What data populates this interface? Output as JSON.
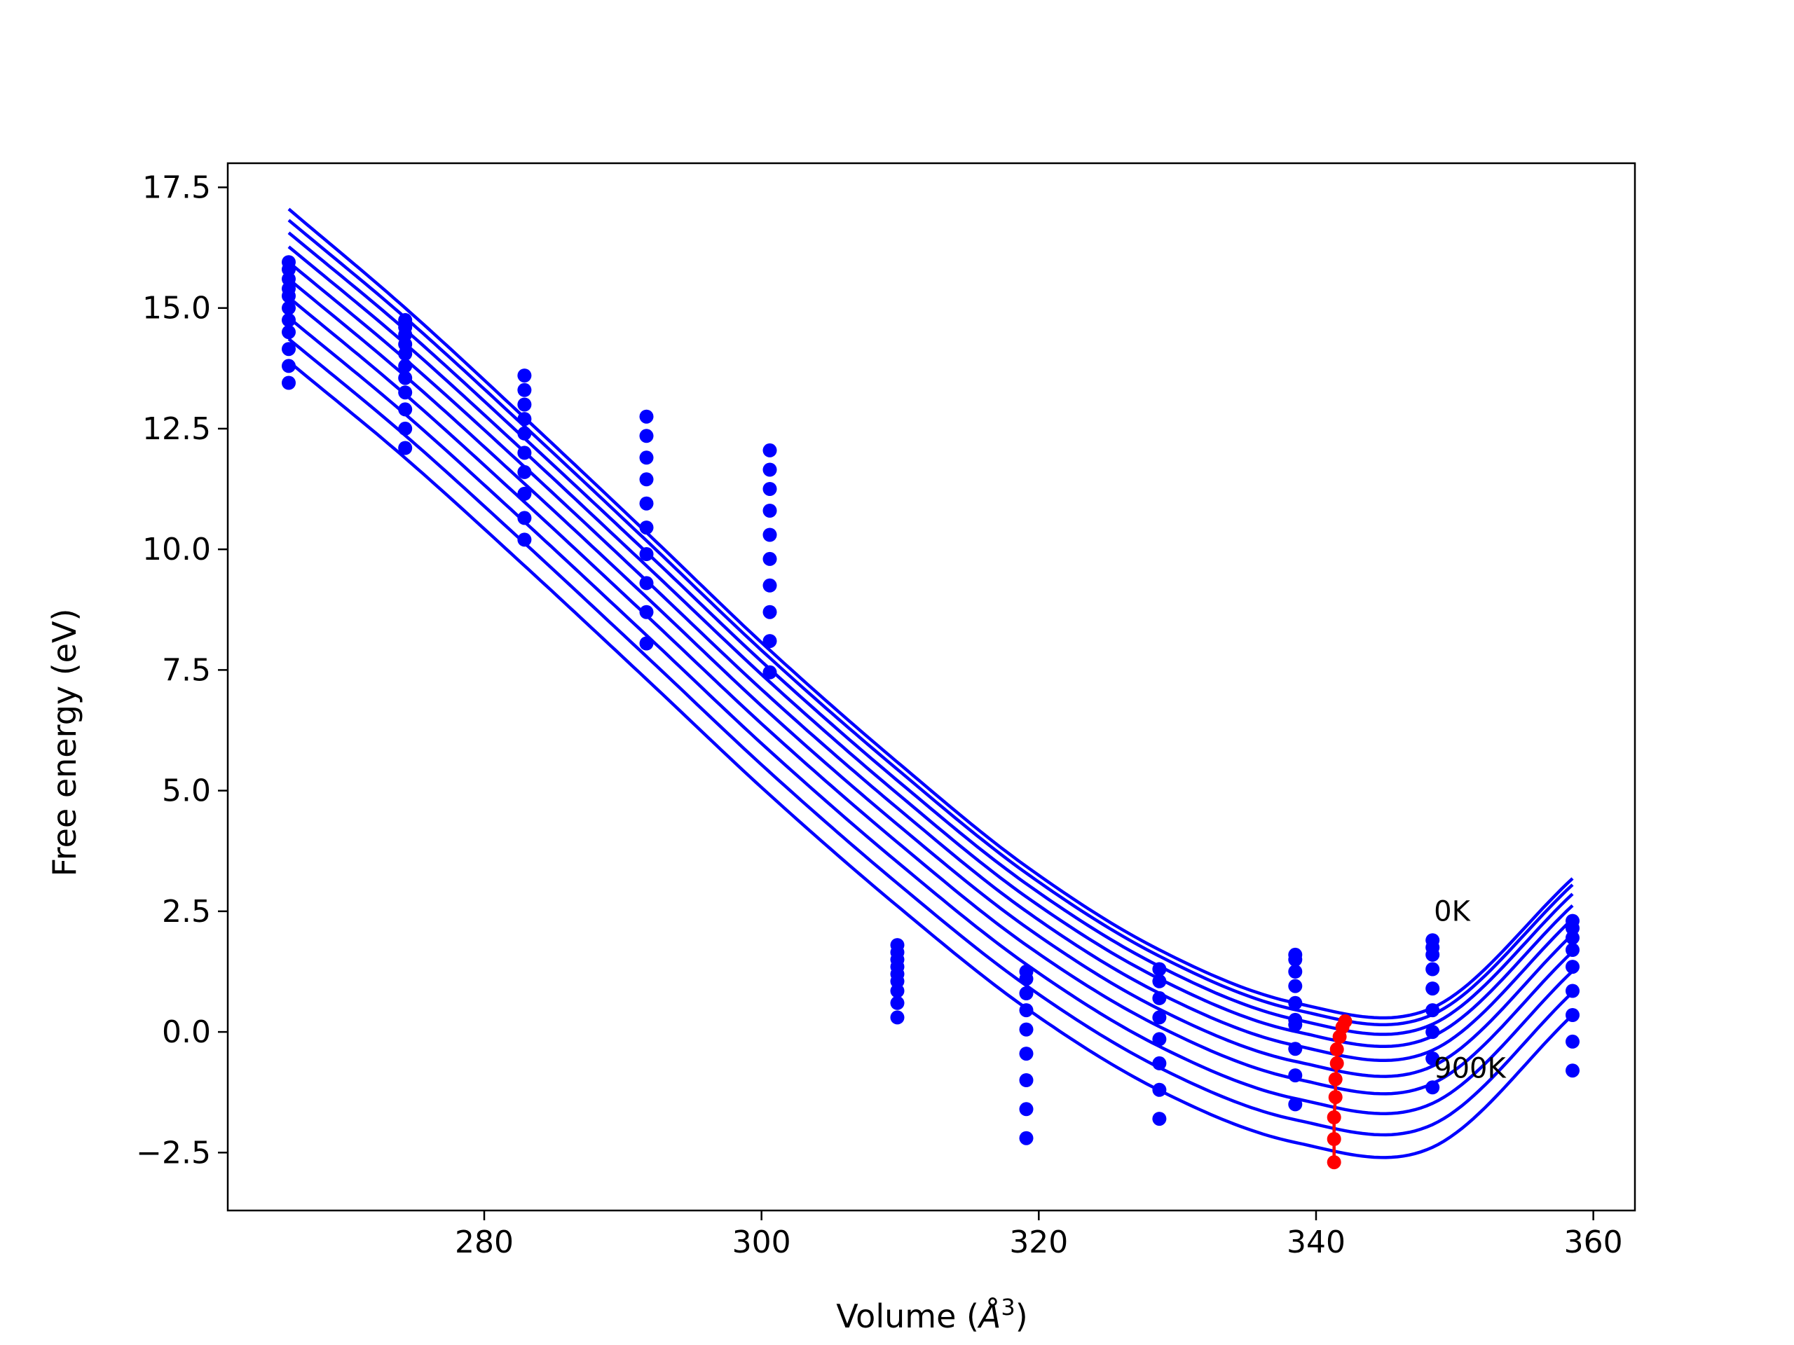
{
  "chart_data": {
    "type": "scatter",
    "title": "",
    "xlabel": "Volume (",
    "xlabel_symbol": "Å",
    "xlabel_exp": "3",
    "xlabel_close": ")",
    "ylabel": "Free energy (eV)",
    "xlim": [
      261.5,
      363
    ],
    "ylim": [
      -3.7,
      18.0
    ],
    "xticks": [
      280,
      300,
      320,
      340,
      360
    ],
    "xtick_labels": [
      "280",
      "300",
      "320",
      "340",
      "360"
    ],
    "yticks": [
      -2.5,
      0.0,
      2.5,
      5.0,
      7.5,
      10.0,
      12.5,
      15.0,
      17.5
    ],
    "ytick_labels": [
      "−2.5",
      "0.0",
      "2.5",
      "5.0",
      "7.5",
      "10.0",
      "12.5",
      "15.0",
      "17.5"
    ],
    "grid": false,
    "volumes": [
      265.9,
      274.3,
      282.9,
      291.7,
      300.6,
      309.8,
      319.1,
      328.7,
      338.5,
      348.4,
      358.5
    ],
    "curve_x_range": [
      265.9,
      358.5
    ],
    "series": [
      {
        "values": [
          17.05,
          15.0,
          12.73,
          10.35,
          7.91,
          5.59,
          3.43,
          1.7,
          0.6,
          0.5,
          3.18
        ]
      },
      {
        "values": [
          16.82,
          14.8,
          12.55,
          10.18,
          7.75,
          5.44,
          3.29,
          1.57,
          0.46,
          0.36,
          3.05
        ]
      },
      {
        "values": [
          16.56,
          14.55,
          12.3,
          9.94,
          7.52,
          5.21,
          3.07,
          1.36,
          0.26,
          0.16,
          2.86
        ]
      },
      {
        "values": [
          16.27,
          14.26,
          12.02,
          9.66,
          7.25,
          4.94,
          2.8,
          1.1,
          0.01,
          -0.09,
          2.62
        ]
      },
      {
        "values": [
          15.95,
          13.94,
          11.71,
          9.35,
          6.94,
          4.64,
          2.5,
          0.8,
          -0.28,
          -0.38,
          2.34
        ]
      },
      {
        "values": [
          15.6,
          13.59,
          11.36,
          9.01,
          6.6,
          4.3,
          2.17,
          0.47,
          -0.61,
          -0.71,
          2.02
        ]
      },
      {
        "values": [
          15.22,
          13.21,
          10.98,
          8.63,
          6.23,
          3.93,
          1.8,
          0.11,
          -0.97,
          -1.07,
          1.66
        ]
      },
      {
        "values": [
          14.8,
          12.8,
          10.57,
          8.22,
          5.82,
          3.52,
          1.4,
          -0.3,
          -1.38,
          -1.48,
          1.26
        ]
      },
      {
        "values": [
          14.36,
          12.36,
          10.13,
          7.78,
          5.38,
          3.08,
          0.96,
          -0.74,
          -1.82,
          -1.92,
          0.82
        ]
      },
      {
        "values": [
          13.89,
          11.89,
          9.66,
          7.31,
          4.91,
          2.61,
          0.49,
          -1.21,
          -2.29,
          -2.39,
          0.35
        ]
      }
    ],
    "curve_minima": [
      0.22,
      0.1,
      -0.1,
      -0.36,
      -0.65,
      -0.98,
      -1.35,
      -1.77,
      -2.22,
      -2.7
    ],
    "points": [
      {
        "x": 265.9,
        "y": [
          15.95,
          15.8,
          15.6,
          15.4,
          15.25,
          15.0,
          14.75,
          14.5,
          14.15,
          13.8,
          13.45
        ]
      },
      {
        "x": 274.3,
        "y": [
          14.75,
          14.6,
          14.45,
          14.25,
          14.05,
          13.8,
          13.55,
          13.25,
          12.9,
          12.5,
          12.1
        ]
      },
      {
        "x": 282.9,
        "y": [
          13.6,
          13.3,
          13.0,
          12.7,
          12.4,
          12.0,
          11.6,
          11.15,
          10.65,
          10.2
        ]
      },
      {
        "x": 291.7,
        "y": [
          12.75,
          12.35,
          11.9,
          11.45,
          10.95,
          10.45,
          9.9,
          9.3,
          8.7,
          8.05
        ]
      },
      {
        "x": 300.6,
        "y": [
          12.05,
          11.65,
          11.25,
          10.8,
          10.3,
          9.8,
          9.25,
          8.7,
          8.1,
          7.45
        ]
      },
      {
        "x": 309.8,
        "y": [
          1.8,
          1.65,
          1.5,
          1.35,
          1.2,
          1.05,
          0.85,
          0.6,
          0.3
        ]
      },
      {
        "x": 319.1,
        "y": [
          1.25,
          1.1,
          0.8,
          0.45,
          0.05,
          -0.45,
          -1.0,
          -1.6,
          -2.2
        ]
      },
      {
        "x": 328.7,
        "y": [
          1.3,
          1.05,
          0.7,
          0.3,
          -0.15,
          -0.65,
          -1.2,
          -1.8
        ]
      },
      {
        "x": 338.5,
        "y": [
          1.6,
          1.5,
          1.25,
          0.95,
          0.6,
          0.25,
          0.15,
          -0.35,
          -0.9,
          -1.5
        ]
      },
      {
        "x": 348.4,
        "y": [
          1.9,
          1.75,
          1.6,
          1.3,
          0.9,
          0.45,
          0.0,
          -0.55,
          -1.15
        ]
      },
      {
        "x": 358.5,
        "y": [
          2.3,
          2.15,
          1.95,
          1.7,
          1.35,
          0.85,
          0.35,
          -0.2,
          -0.8
        ]
      }
    ],
    "equilibrium": [
      {
        "x": 342.1,
        "y": 0.22
      },
      {
        "x": 341.9,
        "y": 0.1
      },
      {
        "x": 341.7,
        "y": -0.1
      },
      {
        "x": 341.5,
        "y": -0.36
      },
      {
        "x": 341.5,
        "y": -0.65
      },
      {
        "x": 341.4,
        "y": -0.98
      },
      {
        "x": 341.4,
        "y": -1.35
      },
      {
        "x": 341.3,
        "y": -1.77
      },
      {
        "x": 341.3,
        "y": -2.22
      },
      {
        "x": 341.3,
        "y": -2.7
      }
    ],
    "annotations": [
      {
        "text": "0K",
        "x": 348.5,
        "y": 2.3
      },
      {
        "text": "900K",
        "x": 348.5,
        "y": -0.95
      }
    ],
    "colors": {
      "curve": "#0000ff",
      "points": "#0000ff",
      "equilibrium": "#ff0000",
      "axes": "#000000"
    }
  }
}
